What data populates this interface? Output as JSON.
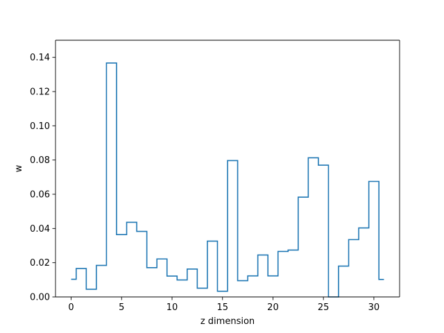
{
  "chart_data": {
    "type": "line",
    "drawstyle": "steps-mid",
    "title": "",
    "xlabel": "z dimension",
    "ylabel": "w",
    "xlim": [
      -1.55,
      32.55
    ],
    "ylim": [
      0.0,
      0.15
    ],
    "xticks": [
      0,
      5,
      10,
      15,
      20,
      25,
      30
    ],
    "xtick_labels": [
      "0",
      "5",
      "10",
      "15",
      "20",
      "25",
      "30"
    ],
    "yticks": [
      0.0,
      0.02,
      0.04,
      0.06,
      0.08,
      0.1,
      0.12,
      0.14
    ],
    "ytick_labels": [
      "0.00",
      "0.02",
      "0.04",
      "0.06",
      "0.08",
      "0.10",
      "0.12",
      "0.14"
    ],
    "grid": false,
    "line_color": "#1f77b4",
    "series": [
      {
        "x": [
          0,
          1,
          2,
          3,
          4,
          5,
          6,
          7,
          8,
          9,
          10,
          11,
          12,
          13,
          14,
          15,
          16,
          17,
          18,
          19,
          20,
          21,
          22,
          23,
          24,
          25,
          26,
          27,
          28,
          29,
          30,
          31
        ],
        "values": [
          0.0103,
          0.0166,
          0.0045,
          0.0184,
          0.1367,
          0.0364,
          0.0436,
          0.0383,
          0.0171,
          0.0222,
          0.0122,
          0.0099,
          0.0163,
          0.0051,
          0.0326,
          0.0033,
          0.0797,
          0.0095,
          0.0123,
          0.0245,
          0.0123,
          0.0266,
          0.0274,
          0.0583,
          0.0813,
          0.077,
          0.0,
          0.018,
          0.0335,
          0.0403,
          0.0675,
          0.0102
        ]
      }
    ]
  }
}
